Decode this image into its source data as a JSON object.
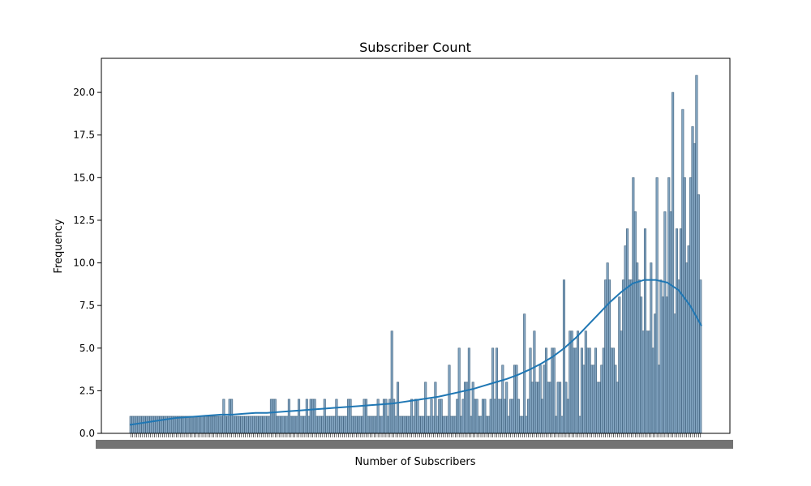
{
  "chart_data": {
    "type": "bar",
    "title": "Subscriber Count",
    "xlabel": "Number of Subscribers",
    "ylabel": "Frequency",
    "ylim": [
      0,
      22
    ],
    "yticks": [
      "0.0",
      "2.5",
      "5.0",
      "7.5",
      "10.0",
      "12.5",
      "15.0",
      "17.5",
      "20.0"
    ],
    "ytick_values": [
      0,
      2.5,
      5,
      7.5,
      10,
      12.5,
      15,
      17.5,
      20
    ],
    "xtick_note": "x tick labels overlap and are illegible",
    "bar_color": "#5b88ad",
    "bar_edge": "#3f5f7a",
    "kde_color": "#1f77b4",
    "bars": [
      1,
      1,
      1,
      1,
      1,
      1,
      1,
      1,
      1,
      1,
      1,
      1,
      1,
      1,
      1,
      1,
      1,
      1,
      1,
      1,
      1,
      1,
      1,
      1,
      1,
      1,
      1,
      1,
      1,
      1,
      1,
      1,
      1,
      1,
      1,
      1,
      1,
      1,
      1,
      1,
      1,
      1,
      1,
      1,
      1,
      1,
      1,
      2,
      1,
      1,
      2,
      2,
      1,
      1,
      1,
      1,
      1,
      1,
      1,
      1,
      1,
      1,
      1,
      1,
      1,
      1,
      1,
      1,
      1,
      1,
      1,
      2,
      2,
      2,
      1,
      1,
      1,
      1,
      1,
      1,
      2,
      1,
      1,
      1,
      1,
      2,
      1,
      1,
      1,
      2,
      1,
      2,
      2,
      2,
      1,
      1,
      1,
      1,
      2,
      1,
      1,
      1,
      1,
      1,
      2,
      1,
      1,
      1,
      1,
      1,
      2,
      2,
      1,
      1,
      1,
      1,
      1,
      1,
      2,
      2,
      1,
      1,
      1,
      1,
      1,
      2,
      1,
      1,
      2,
      2,
      1,
      2,
      6,
      2,
      1,
      3,
      1,
      1,
      1,
      1,
      1,
      1,
      2,
      1,
      2,
      2,
      1,
      1,
      1,
      3,
      1,
      1,
      2,
      1,
      3,
      1,
      2,
      2,
      1,
      1,
      1,
      4,
      1,
      1,
      1,
      2,
      5,
      1,
      2,
      3,
      3,
      5,
      1,
      3,
      2,
      2,
      1,
      1,
      2,
      2,
      1,
      1,
      2,
      5,
      2,
      5,
      2,
      2,
      4,
      2,
      3,
      1,
      2,
      2,
      4,
      4,
      2,
      1,
      1,
      7,
      1,
      2,
      5,
      3,
      6,
      3,
      3,
      4,
      2,
      4,
      5,
      3,
      3,
      5,
      5,
      1,
      3,
      3,
      1,
      9,
      3,
      2,
      6,
      6,
      5,
      5,
      6,
      1,
      5,
      4,
      6,
      5,
      5,
      4,
      4,
      5,
      3,
      3,
      4,
      5,
      9,
      10,
      9,
      5,
      5,
      4,
      3,
      8,
      6,
      9,
      11,
      12,
      9,
      9,
      15,
      13,
      10,
      9,
      8,
      6,
      12,
      6,
      6,
      10,
      5,
      7,
      15,
      4,
      9,
      8,
      13,
      8,
      15,
      13,
      20,
      7,
      12,
      9,
      12,
      19,
      15,
      10,
      11,
      15,
      18,
      17,
      21,
      14,
      9
    ],
    "kde": [
      0.5,
      0.6,
      0.7,
      0.8,
      0.9,
      0.95,
      1.0,
      1.05,
      1.1,
      1.1,
      1.15,
      1.2,
      1.2,
      1.25,
      1.3,
      1.35,
      1.4,
      1.45,
      1.5,
      1.55,
      1.6,
      1.65,
      1.7,
      1.75,
      1.85,
      1.95,
      2.05,
      2.15,
      2.3,
      2.45,
      2.6,
      2.8,
      3.0,
      3.2,
      3.45,
      3.75,
      4.1,
      4.5,
      5.0,
      5.6,
      6.3,
      7.0,
      7.7,
      8.3,
      8.8,
      9.0,
      9.0,
      8.85,
      8.4,
      7.5,
      6.3
    ]
  }
}
